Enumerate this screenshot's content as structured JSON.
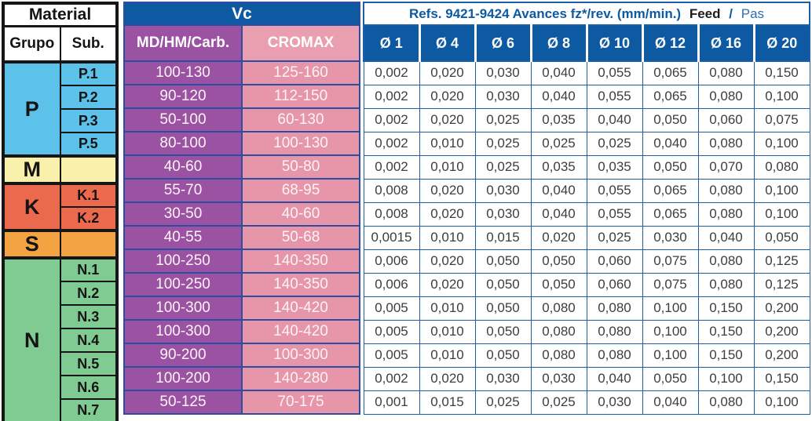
{
  "colors": {
    "header_blue": "#0d5aa3",
    "mid_border_blue": "#2c4ea0",
    "right_border_blue": "#1b5fa6",
    "purple": "#9b52a3",
    "pink": "#e795a8",
    "pink_header": "#ea9fb0",
    "p_blue": "#5cc2e9",
    "m_yellow": "#f9f0ab",
    "k_red": "#eb6a4e",
    "s_orange": "#f4a342",
    "n_green": "#7fcb91",
    "data_text": "#3d3d3d"
  },
  "material": {
    "title": "Material",
    "col_group": "Grupo",
    "col_sub": "Sub.",
    "groups": [
      {
        "label": "P",
        "color": "#5cc2e9",
        "subs": [
          "P.1",
          "P.2",
          "P.3",
          "P.5"
        ]
      },
      {
        "label": "M",
        "color": "#f9f0ab",
        "subs": [
          ""
        ]
      },
      {
        "label": "K",
        "color": "#eb6a4e",
        "subs": [
          "K.1",
          "K.2"
        ]
      },
      {
        "label": "S",
        "color": "#f4a342",
        "subs": [
          ""
        ]
      },
      {
        "label": "N",
        "color": "#7fcb91",
        "subs": [
          "N.1",
          "N.2",
          "N.3",
          "N.4",
          "N.5",
          "N.6",
          "N.7"
        ]
      }
    ]
  },
  "vc": {
    "title": "Vc",
    "col1_bold": "MD/HM/",
    "col1_rest": "Carb.",
    "col2": "CROMAX",
    "rows": [
      [
        "100-130",
        "125-160"
      ],
      [
        "90-120",
        "112-150"
      ],
      [
        "50-100",
        "60-130"
      ],
      [
        "80-100",
        "100-130"
      ],
      [
        "40-60",
        "50-80"
      ],
      [
        "55-70",
        "68-95"
      ],
      [
        "30-50",
        "40-60"
      ],
      [
        "40-55",
        "50-68"
      ],
      [
        "100-250",
        "140-350"
      ],
      [
        "100-250",
        "140-350"
      ],
      [
        "100-300",
        "140-420"
      ],
      [
        "100-300",
        "140-420"
      ],
      [
        "90-200",
        "100-300"
      ],
      [
        "100-200",
        "140-280"
      ],
      [
        "50-125",
        "70-175"
      ]
    ]
  },
  "feed": {
    "title_main": "Refs. 9421-9424 Avances fz*/rev. (mm/min.)",
    "title_feed": "Feed",
    "title_sep": "/",
    "title_pas": "Pas",
    "columns": [
      "Ø 1",
      "Ø 4",
      "Ø 6",
      "Ø 8",
      "Ø 10",
      "Ø 12",
      "Ø 16",
      "Ø 20"
    ],
    "rows": [
      [
        "0,002",
        "0,020",
        "0,030",
        "0,040",
        "0,055",
        "0,065",
        "0,080",
        "0,150"
      ],
      [
        "0,002",
        "0,020",
        "0,030",
        "0,040",
        "0,055",
        "0,065",
        "0,080",
        "0,100"
      ],
      [
        "0,002",
        "0,020",
        "0,025",
        "0,035",
        "0,040",
        "0,050",
        "0,060",
        "0,075"
      ],
      [
        "0,002",
        "0,010",
        "0,025",
        "0,025",
        "0,025",
        "0,040",
        "0,080",
        "0,100"
      ],
      [
        "0,002",
        "0,010",
        "0,025",
        "0,035",
        "0,035",
        "0,050",
        "0,070",
        "0,080"
      ],
      [
        "0,008",
        "0,020",
        "0,030",
        "0,040",
        "0,055",
        "0,065",
        "0,080",
        "0,100"
      ],
      [
        "0,008",
        "0,020",
        "0,030",
        "0,040",
        "0,055",
        "0,065",
        "0,080",
        "0,100"
      ],
      [
        "0,0015",
        "0,010",
        "0,015",
        "0,020",
        "0,025",
        "0,030",
        "0,040",
        "0,050"
      ],
      [
        "0,006",
        "0,020",
        "0,050",
        "0,050",
        "0,060",
        "0,075",
        "0,080",
        "0,125"
      ],
      [
        "0,006",
        "0,020",
        "0,050",
        "0,050",
        "0,060",
        "0,075",
        "0,080",
        "0,125"
      ],
      [
        "0,005",
        "0,010",
        "0,050",
        "0,080",
        "0,080",
        "0,100",
        "0,150",
        "0,200"
      ],
      [
        "0,005",
        "0,010",
        "0,050",
        "0,080",
        "0,080",
        "0,100",
        "0,150",
        "0,200"
      ],
      [
        "0,005",
        "0,010",
        "0,050",
        "0,080",
        "0,080",
        "0,100",
        "0,150",
        "0,200"
      ],
      [
        "0,002",
        "0,020",
        "0,030",
        "0,030",
        "0,040",
        "0,050",
        "0,100",
        "0,150"
      ],
      [
        "0,001",
        "0,015",
        "0,025",
        "0,025",
        "0,030",
        "0,040",
        "0,080",
        "0,100"
      ]
    ]
  }
}
